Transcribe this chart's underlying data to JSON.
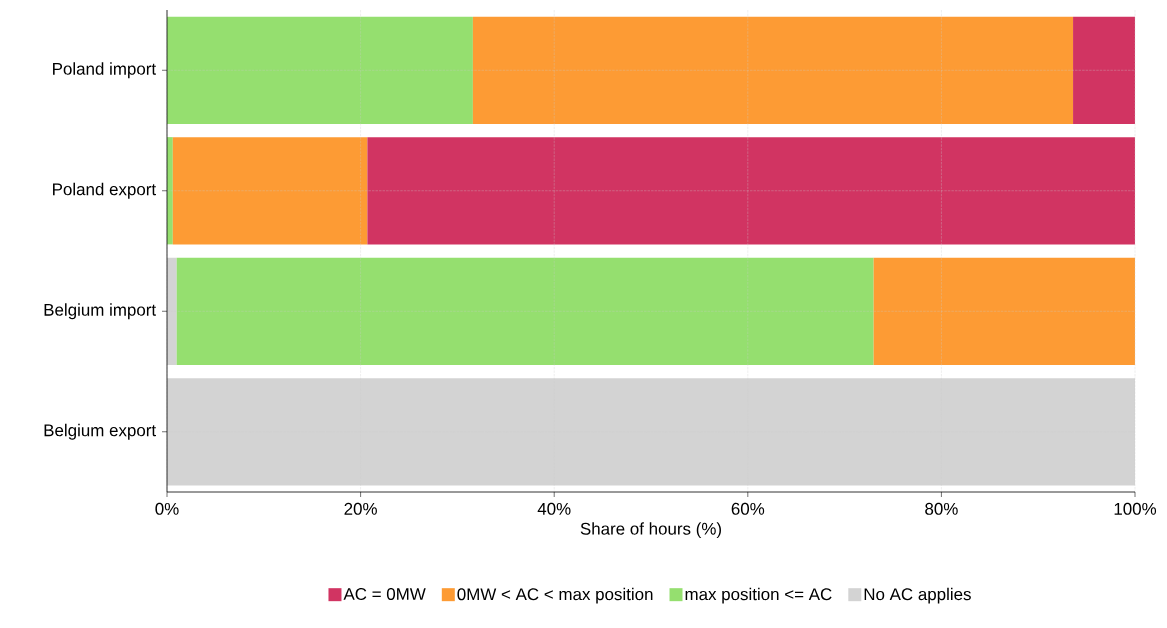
{
  "chart_data": {
    "type": "bar",
    "orientation": "horizontal",
    "stacked": true,
    "xlabel": "Share of hours (%)",
    "categories": [
      "Poland import",
      "Poland export",
      "Belgium import",
      "Belgium export"
    ],
    "series": [
      {
        "name": "No AC applies",
        "color": "#d3d3d3",
        "values": [
          null,
          null,
          1.0,
          100
        ]
      },
      {
        "name": "max position <= AC",
        "color": "#95df6f",
        "values": [
          31.6,
          0.6,
          72.0,
          null
        ]
      },
      {
        "name": "0MW < AC < max position",
        "color": "#fd9b34",
        "values": [
          62.0,
          20.1,
          27.0,
          null
        ]
      },
      {
        "name": "AC = 0MW",
        "color": "#d13462",
        "values": [
          6.4,
          79.3,
          null,
          null
        ]
      }
    ],
    "xlim": [
      0,
      100
    ],
    "xticks": [
      {
        "value": 0,
        "label": "0%"
      },
      {
        "value": 20,
        "label": "20%"
      },
      {
        "value": 40,
        "label": "40%"
      },
      {
        "value": 60,
        "label": "60%"
      },
      {
        "value": 80,
        "label": "80%"
      },
      {
        "value": 100,
        "label": "100%"
      }
    ],
    "grid": true,
    "legend": "bottom"
  }
}
